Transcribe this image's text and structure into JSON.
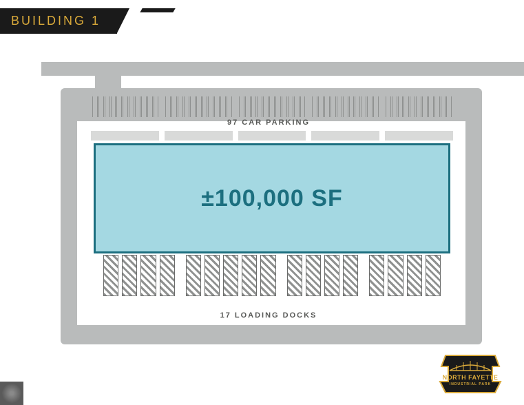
{
  "header": {
    "title": "BUILDING 1"
  },
  "site": {
    "parking_label": "97 CAR PARKING",
    "parking_count": 97,
    "docks_label": "17 LOADING DOCKS",
    "docks_count": 17,
    "building": {
      "sf_label": "±100,000 SF",
      "fill_color": "#a4d8e2",
      "stroke_color": "#1c6f7f",
      "text_color": "#1c6f7f",
      "text_fontsize": 34
    },
    "road_color": "#b9bbbb",
    "label_color": "#585957",
    "hatch_color": "#8f9190"
  },
  "logo": {
    "line1": "NORTH FAYETTE",
    "line2": "INDUSTRIAL",
    "line3": "PARK",
    "bg": "#1a1a1a",
    "accent": "#d9a93a"
  },
  "colors": {
    "page_bg": "#ffffff",
    "header_bg": "#1a1a1a",
    "header_text": "#d9a93a"
  }
}
